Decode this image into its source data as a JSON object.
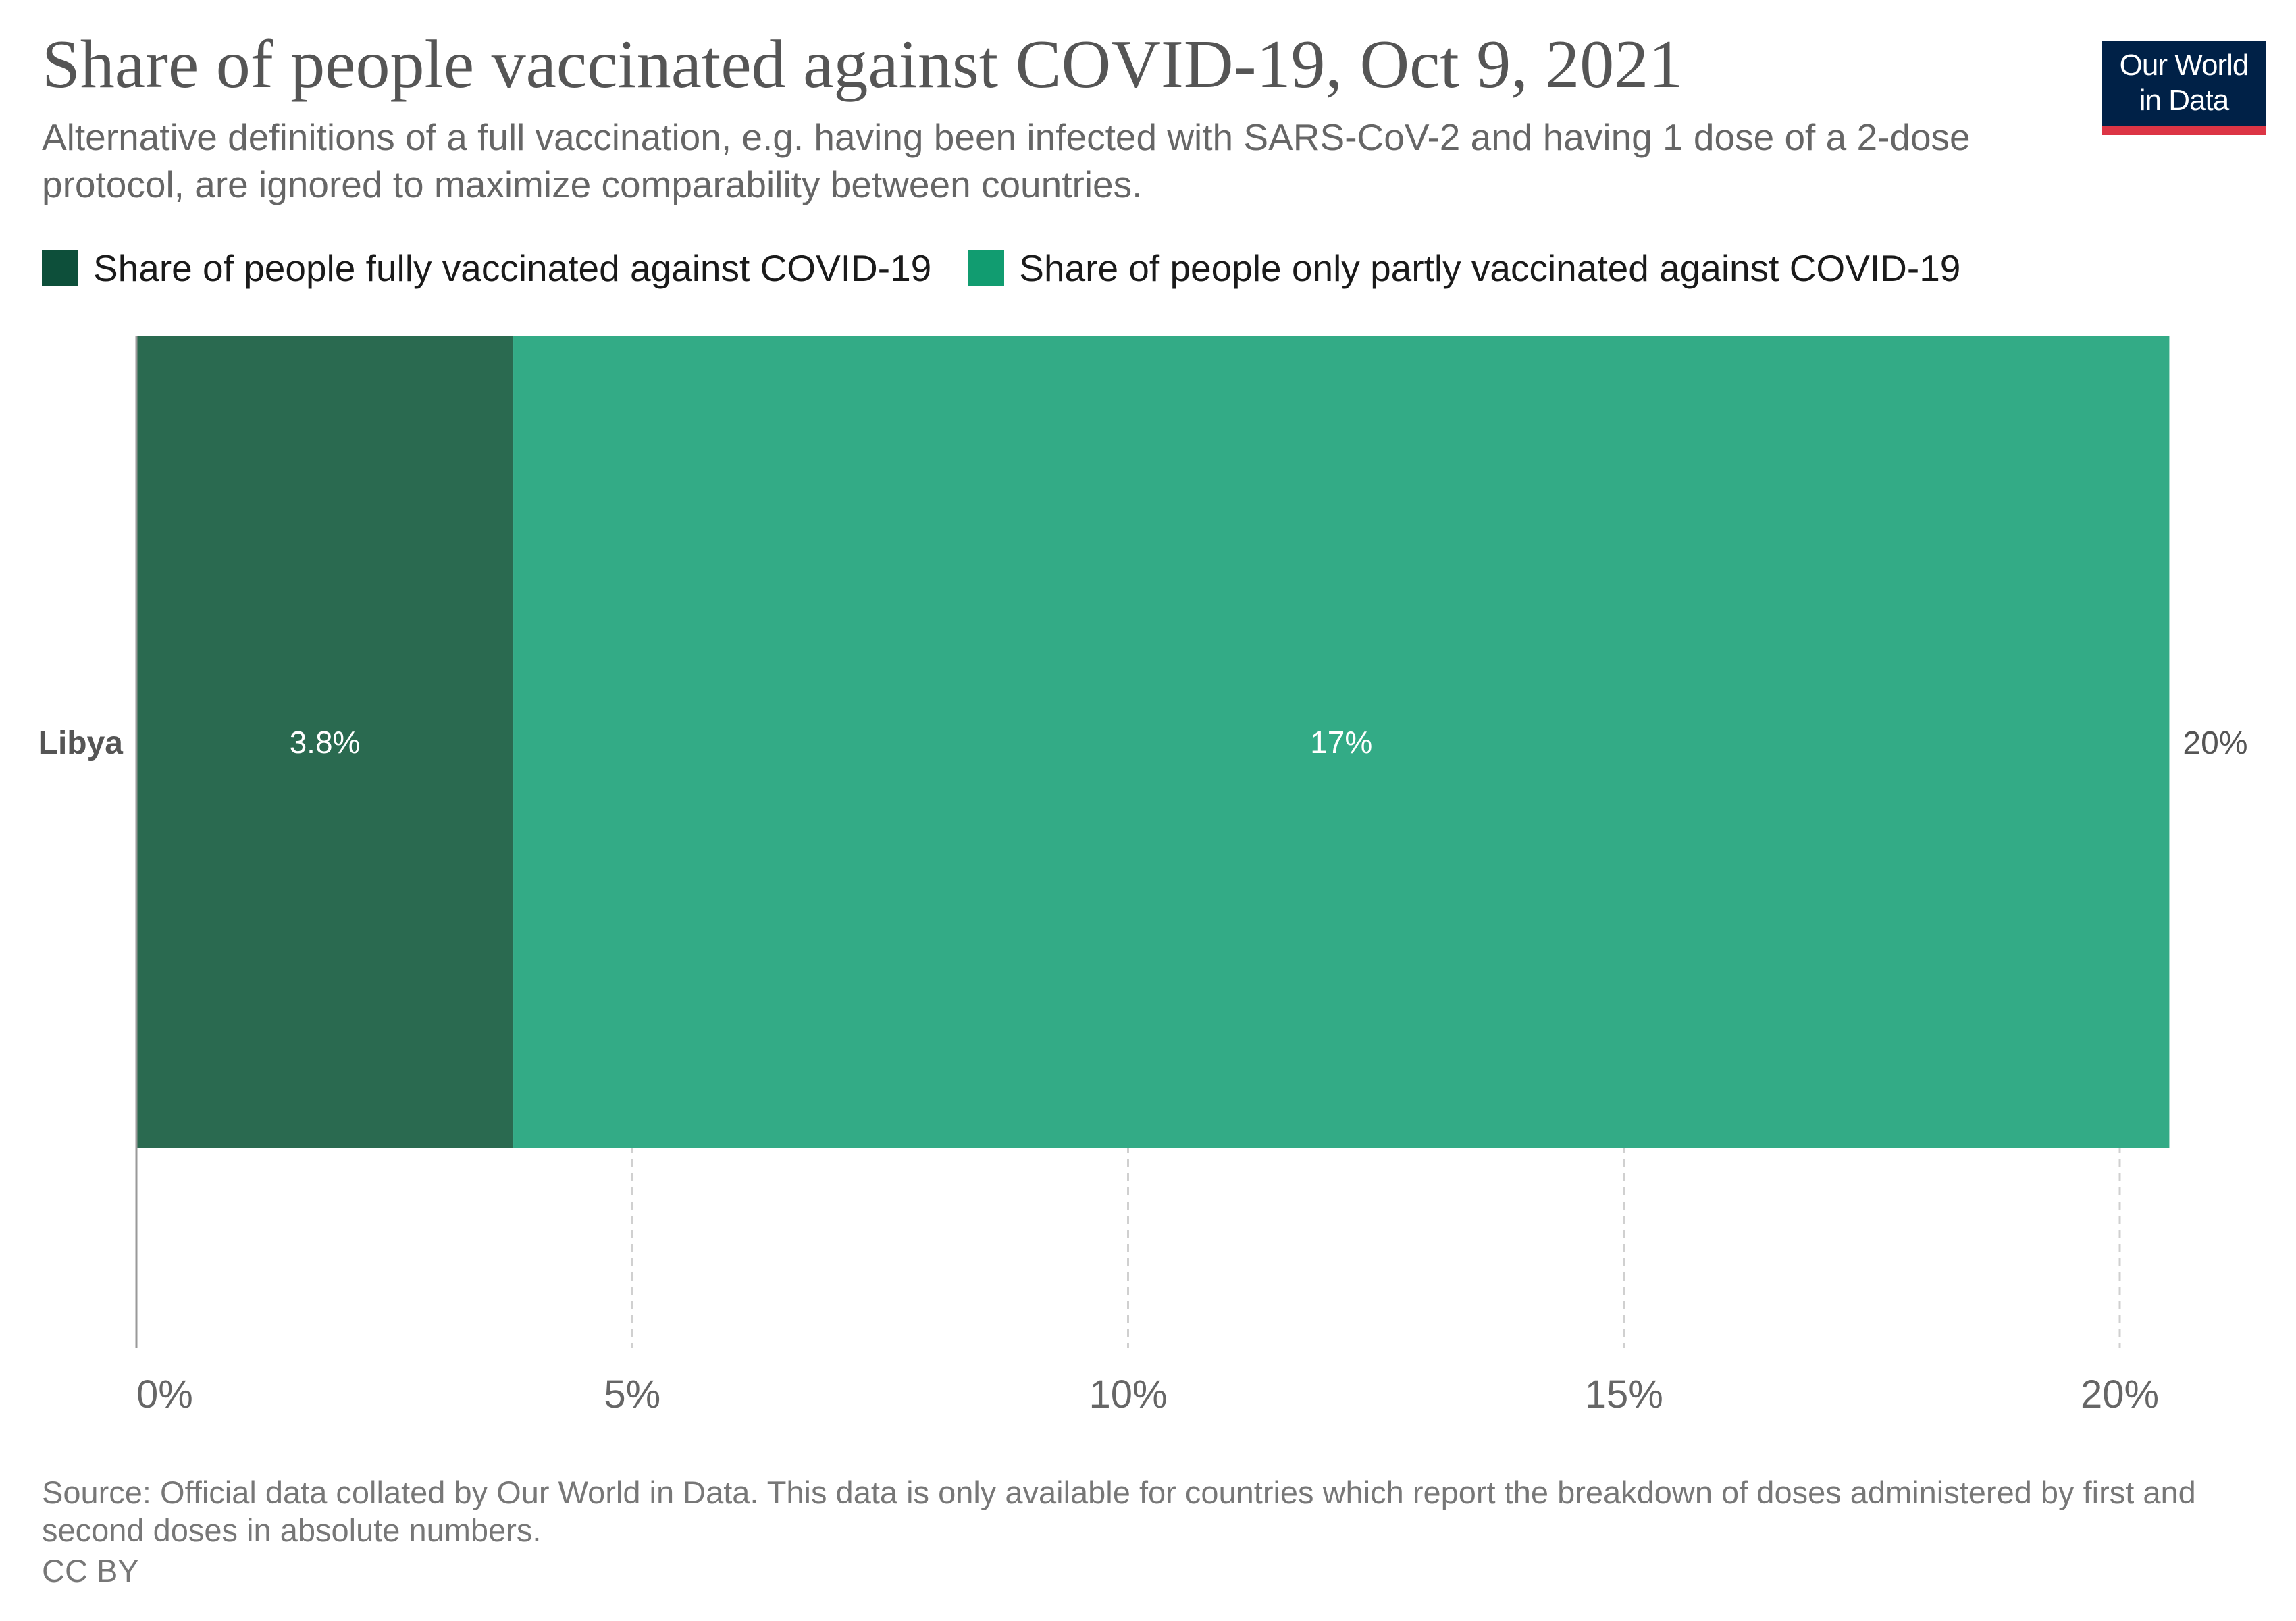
{
  "title": "Share of people vaccinated against COVID-19, Oct 9, 2021",
  "subtitle": "Alternative definitions of a full vaccination, e.g. having been infected with SARS-CoV-2 and having 1 dose of a 2-dose protocol, are ignored to maximize comparability between countries.",
  "logo": {
    "line1": "Our World",
    "line2": "in Data"
  },
  "source": "Source: Official data collated by Our World in Data. This data is only available for countries which report the breakdown of doses administered by first and second doses in absolute numbers.",
  "license": "CC BY",
  "colors": {
    "fully": "#2a6a50",
    "partly": "#33ab86",
    "fully_legend": "#0d4f3a",
    "partly_legend": "#119c70"
  },
  "legend": [
    {
      "label": "Share of people fully vaccinated against COVID-19",
      "color": "#0d4f3a"
    },
    {
      "label": "Share of people only partly vaccinated against COVID-19",
      "color": "#119c70"
    }
  ],
  "chart_data": {
    "type": "bar",
    "orientation": "horizontal",
    "stacked": true,
    "categories": [
      "Libya"
    ],
    "series": [
      {
        "name": "Share of people fully vaccinated against COVID-19",
        "values": [
          3.8
        ],
        "labels": [
          "3.8%"
        ]
      },
      {
        "name": "Share of people only partly vaccinated against COVID-19",
        "values": [
          16.7
        ],
        "labels": [
          "17%"
        ]
      }
    ],
    "totals": [
      "20%"
    ],
    "xlim": [
      0,
      20
    ],
    "xticks": [
      0,
      5,
      10,
      15,
      20
    ],
    "xtick_labels": [
      "0%",
      "5%",
      "10%",
      "15%",
      "20%"
    ],
    "grid": "vertical dashed",
    "legend_position": "top"
  }
}
